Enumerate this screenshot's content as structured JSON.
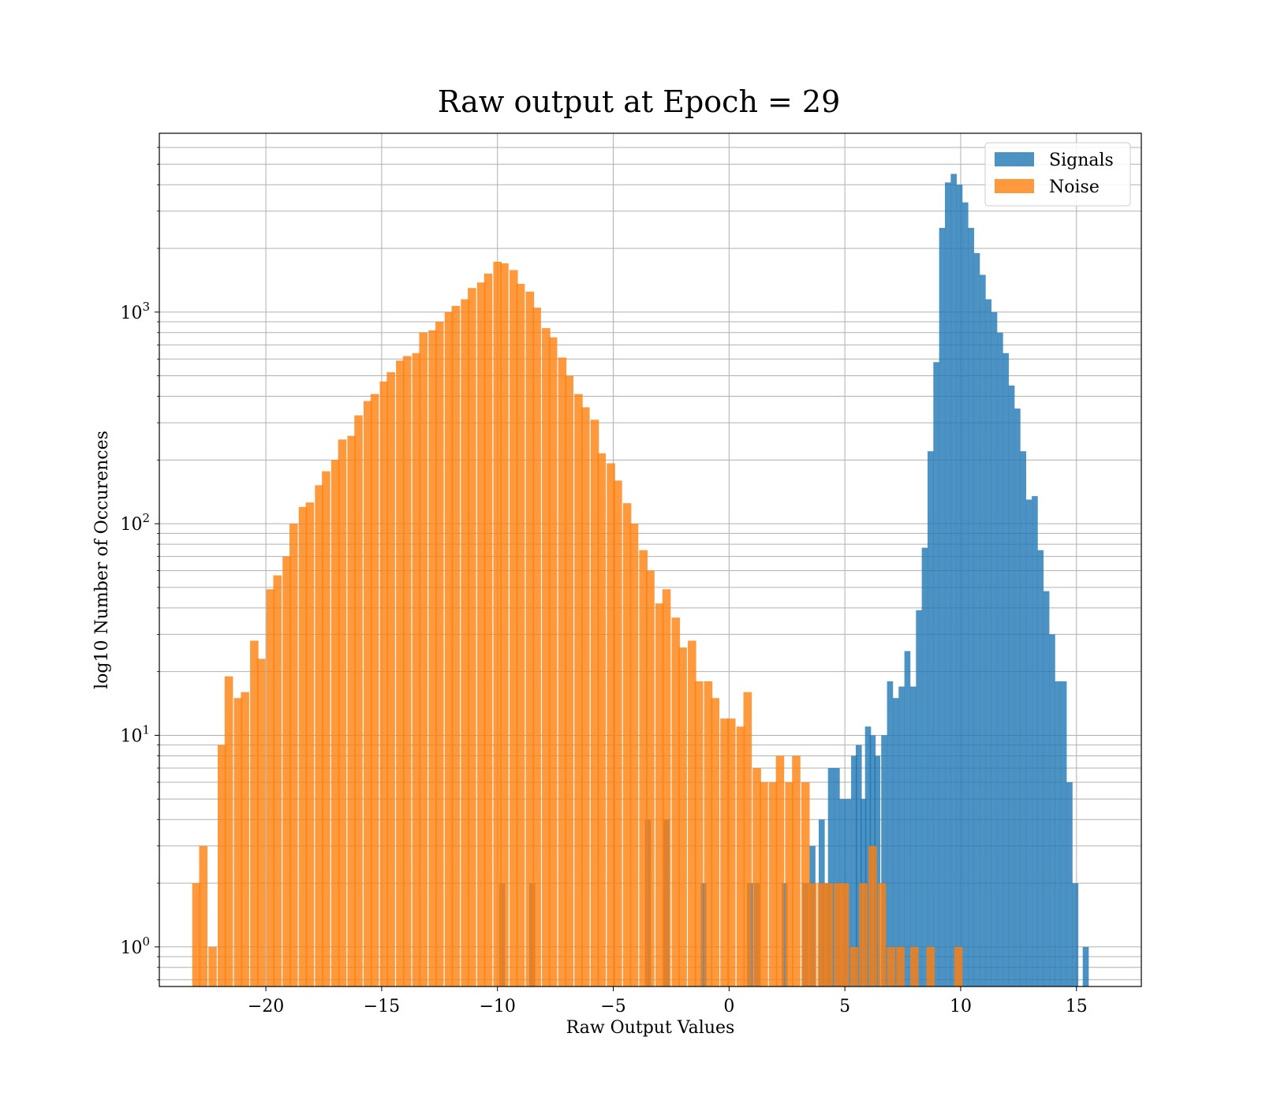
{
  "chart_data": {
    "type": "bar",
    "title": "Raw output at Epoch = 29",
    "xlabel": "Raw Output Values",
    "ylabel": "log10 Number of Occurences",
    "xlim": [
      -24.6,
      17.8
    ],
    "ylim": [
      0.65,
      7000
    ],
    "yscale": "log",
    "grid": true,
    "legend_position": "top-right",
    "colors": {
      "signals": "#1f77b4",
      "noise": "#ff7f0e"
    },
    "bar_alpha": 0.8,
    "x_ticks": [
      {
        "value": -20,
        "label": "−20"
      },
      {
        "value": -15,
        "label": "−15"
      },
      {
        "value": -10,
        "label": "−10"
      },
      {
        "value": -5,
        "label": "−5"
      },
      {
        "value": 0,
        "label": "0"
      },
      {
        "value": 5,
        "label": "5"
      },
      {
        "value": 10,
        "label": "10"
      },
      {
        "value": 15,
        "label": "15"
      }
    ],
    "y_ticks": [
      {
        "value": 1,
        "base": "10",
        "exp": "0"
      },
      {
        "value": 10,
        "base": "10",
        "exp": "1"
      },
      {
        "value": 100,
        "base": "10",
        "exp": "2"
      },
      {
        "value": 1000,
        "base": "10",
        "exp": "3"
      }
    ],
    "series": [
      {
        "name": "Signals",
        "bin_width": 0.26,
        "bins": [
          [
            -9.8,
            2
          ],
          [
            -8.5,
            2
          ],
          [
            -3.5,
            4
          ],
          [
            -2.7,
            4
          ],
          [
            -1.1,
            2
          ],
          [
            0.9,
            2
          ],
          [
            1.2,
            2
          ],
          [
            2.4,
            2
          ],
          [
            3.3,
            2
          ],
          [
            3.6,
            3
          ],
          [
            4.0,
            4
          ],
          [
            4.2,
            2
          ],
          [
            4.4,
            7
          ],
          [
            4.65,
            7
          ],
          [
            4.9,
            5
          ],
          [
            5.15,
            5
          ],
          [
            5.4,
            8
          ],
          [
            5.6,
            9
          ],
          [
            5.8,
            5
          ],
          [
            6.0,
            11
          ],
          [
            6.2,
            10
          ],
          [
            6.4,
            8
          ],
          [
            6.7,
            10
          ],
          [
            6.95,
            18
          ],
          [
            7.2,
            15
          ],
          [
            7.45,
            17
          ],
          [
            7.7,
            25
          ],
          [
            7.95,
            17
          ],
          [
            8.2,
            39
          ],
          [
            8.45,
            77
          ],
          [
            8.7,
            220
          ],
          [
            8.95,
            580
          ],
          [
            9.2,
            2500
          ],
          [
            9.45,
            4100
          ],
          [
            9.7,
            4500
          ],
          [
            9.95,
            4000
          ],
          [
            10.2,
            3300
          ],
          [
            10.45,
            2500
          ],
          [
            10.7,
            1900
          ],
          [
            10.95,
            1500
          ],
          [
            11.2,
            1150
          ],
          [
            11.45,
            1000
          ],
          [
            11.7,
            800
          ],
          [
            11.95,
            640
          ],
          [
            12.2,
            450
          ],
          [
            12.45,
            350
          ],
          [
            12.7,
            220
          ],
          [
            12.95,
            130
          ],
          [
            13.2,
            135
          ],
          [
            13.45,
            75
          ],
          [
            13.7,
            48
          ],
          [
            13.95,
            30
          ],
          [
            14.2,
            18
          ],
          [
            14.45,
            18
          ],
          [
            14.7,
            6
          ],
          [
            14.95,
            2
          ],
          [
            15.4,
            1
          ]
        ]
      },
      {
        "name": "Noise",
        "bin_width": 0.36,
        "bins": [
          [
            -23.0,
            2
          ],
          [
            -22.7,
            3
          ],
          [
            -22.3,
            1
          ],
          [
            -21.9,
            9
          ],
          [
            -21.6,
            19
          ],
          [
            -21.2,
            15
          ],
          [
            -20.9,
            16
          ],
          [
            -20.5,
            28
          ],
          [
            -20.2,
            23
          ],
          [
            -19.8,
            49
          ],
          [
            -19.5,
            57
          ],
          [
            -19.1,
            70
          ],
          [
            -18.8,
            100
          ],
          [
            -18.4,
            120
          ],
          [
            -18.1,
            126
          ],
          [
            -17.7,
            152
          ],
          [
            -17.4,
            177
          ],
          [
            -17.0,
            200
          ],
          [
            -16.7,
            250
          ],
          [
            -16.3,
            260
          ],
          [
            -16.0,
            325
          ],
          [
            -15.6,
            380
          ],
          [
            -15.3,
            410
          ],
          [
            -14.9,
            470
          ],
          [
            -14.6,
            520
          ],
          [
            -14.2,
            590
          ],
          [
            -13.9,
            620
          ],
          [
            -13.5,
            640
          ],
          [
            -13.2,
            800
          ],
          [
            -12.8,
            820
          ],
          [
            -12.5,
            900
          ],
          [
            -12.1,
            1000
          ],
          [
            -11.8,
            1070
          ],
          [
            -11.4,
            1150
          ],
          [
            -11.1,
            1300
          ],
          [
            -10.7,
            1380
          ],
          [
            -10.4,
            1520
          ],
          [
            -10.0,
            1730
          ],
          [
            -9.7,
            1700
          ],
          [
            -9.3,
            1580
          ],
          [
            -9.0,
            1360
          ],
          [
            -8.6,
            1250
          ],
          [
            -8.3,
            1050
          ],
          [
            -7.9,
            840
          ],
          [
            -7.6,
            760
          ],
          [
            -7.2,
            610
          ],
          [
            -6.9,
            500
          ],
          [
            -6.5,
            410
          ],
          [
            -6.2,
            355
          ],
          [
            -5.8,
            310
          ],
          [
            -5.5,
            215
          ],
          [
            -5.1,
            193
          ],
          [
            -4.8,
            160
          ],
          [
            -4.4,
            125
          ],
          [
            -4.1,
            100
          ],
          [
            -3.7,
            75
          ],
          [
            -3.4,
            60
          ],
          [
            -3.0,
            42
          ],
          [
            -2.7,
            49
          ],
          [
            -2.3,
            36
          ],
          [
            -2.0,
            26
          ],
          [
            -1.6,
            28
          ],
          [
            -1.3,
            18
          ],
          [
            -0.9,
            18
          ],
          [
            -0.6,
            15
          ],
          [
            -0.2,
            12
          ],
          [
            0.1,
            12
          ],
          [
            0.5,
            11
          ],
          [
            0.8,
            16
          ],
          [
            1.2,
            7
          ],
          [
            1.5,
            6
          ],
          [
            1.9,
            6
          ],
          [
            2.2,
            8
          ],
          [
            2.6,
            6
          ],
          [
            2.9,
            8
          ],
          [
            3.3,
            6
          ],
          [
            3.6,
            2
          ],
          [
            4.0,
            2
          ],
          [
            4.3,
            2
          ],
          [
            4.7,
            2
          ],
          [
            5.0,
            2
          ],
          [
            5.4,
            1
          ],
          [
            5.8,
            2
          ],
          [
            6.2,
            3
          ],
          [
            6.6,
            2
          ],
          [
            7.0,
            1
          ],
          [
            7.4,
            1
          ],
          [
            8.0,
            1
          ],
          [
            8.7,
            1
          ],
          [
            9.9,
            1
          ]
        ]
      }
    ]
  }
}
